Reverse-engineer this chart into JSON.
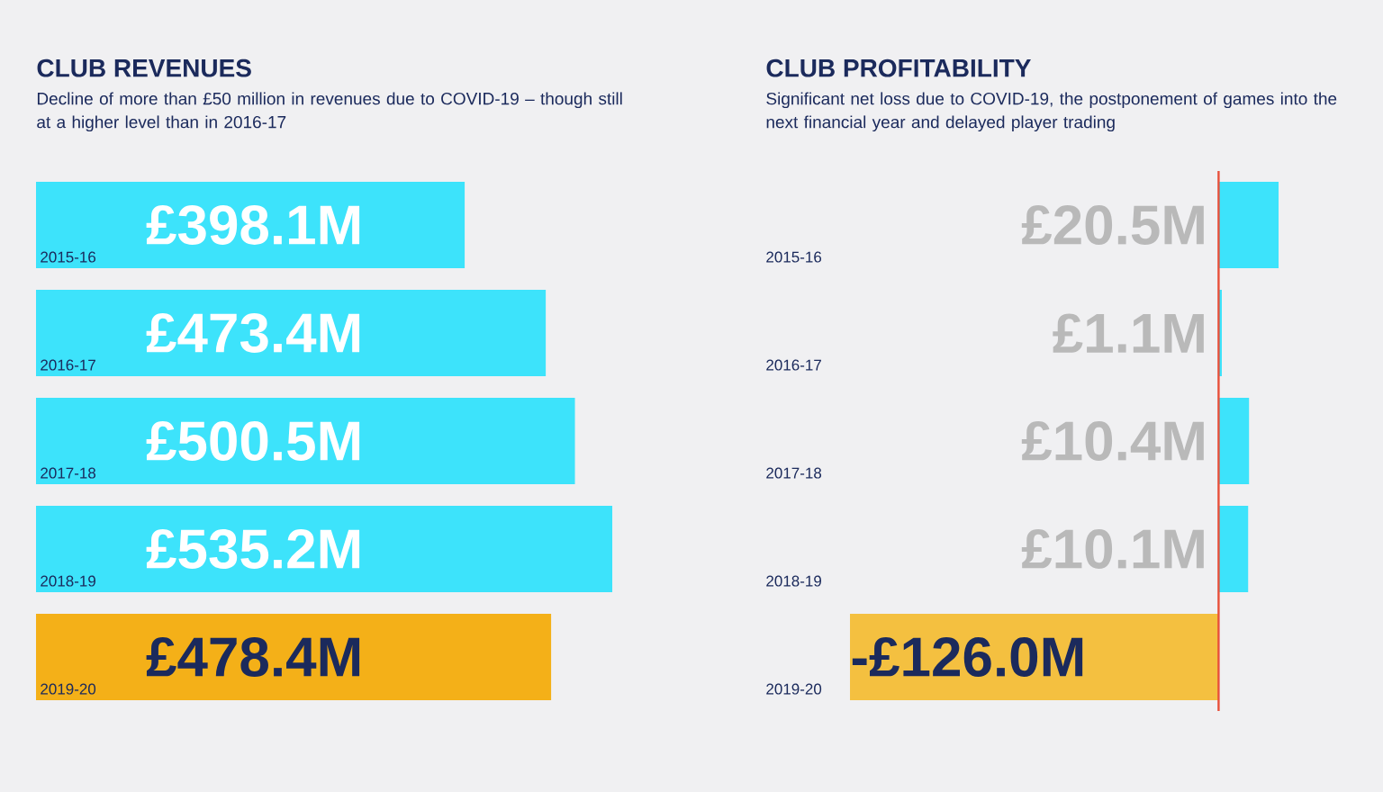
{
  "chart_data": [
    {
      "type": "bar",
      "orientation": "horizontal",
      "title": "CLUB REVENUES",
      "subtitle": "Decline of more than £50 million in revenues due to COVID-19 – though still at a higher level than in 2016-17",
      "categories": [
        "2015-16",
        "2016-17",
        "2017-18",
        "2018-19",
        "2019-20"
      ],
      "values": [
        398.1,
        473.4,
        500.5,
        535.2,
        478.4
      ],
      "colors": [
        "#3de3fb",
        "#3de3fb",
        "#3de3fb",
        "#3de3fb",
        "#f4b018"
      ],
      "value_labels": [
        "£398.1M",
        "£473.4M",
        "£500.5M",
        "£535.2M",
        "£478.4M"
      ],
      "tick_labels": false
    },
    {
      "type": "bar",
      "orientation": "horizontal",
      "title": "CLUB PROFITABILITY",
      "subtitle": "Significant net loss due to COVID-19, the postponement of games into the next financial year and delayed player trading",
      "categories": [
        "2015-16",
        "2016-17",
        "2017-18",
        "2018-19",
        "2019-20"
      ],
      "values": [
        20.5,
        1.1,
        10.4,
        10.1,
        -126.0
      ],
      "colors": [
        "#3de3fb",
        "#3de3fb",
        "#3de3fb",
        "#3de3fb",
        "#f4c040"
      ],
      "value_labels": [
        "£20.5M",
        "£1.1M",
        "£10.4M",
        "£10.1M",
        "-£126.0M"
      ],
      "tick_labels": false,
      "ref_lines": [
        {
          "axis": "x",
          "value": 0,
          "color": "#e8503a"
        }
      ]
    }
  ]
}
